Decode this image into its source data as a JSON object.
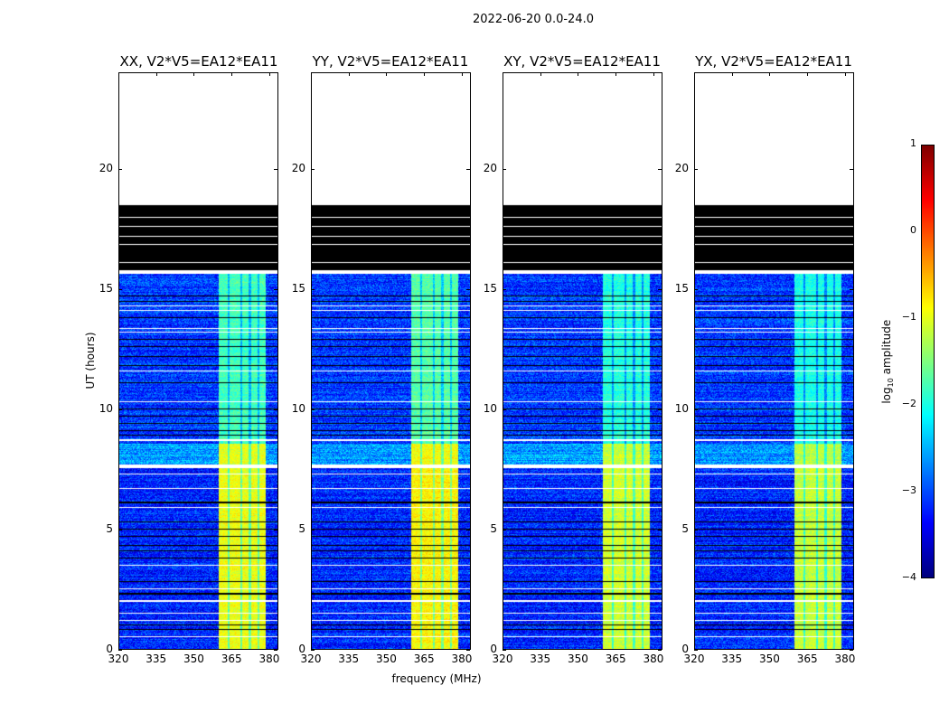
{
  "chart_data": {
    "type": "heatmap",
    "title": "2022-06-20 0.0-24.0",
    "xlabel": "frequency (MHz)",
    "ylabel": "UT (hours)",
    "xlim": [
      320,
      383.6
    ],
    "ylim": [
      0,
      24
    ],
    "xticks": [
      "320",
      "335",
      "350",
      "365",
      "380"
    ],
    "xtick_values": [
      320,
      335,
      350,
      365,
      380
    ],
    "yticks": [
      "0",
      "5",
      "10",
      "15",
      "20"
    ],
    "ytick_values": [
      0,
      5,
      10,
      15,
      20
    ],
    "colorbar": {
      "label_main": "log",
      "label_sub": "10",
      "label_rest": " amplitude",
      "range": [
        -4,
        1
      ],
      "ticks": [
        "1",
        "0",
        "−1",
        "−2",
        "−3",
        "−4"
      ],
      "tick_values": [
        1,
        0,
        -1,
        -2,
        -3,
        -4
      ],
      "colormap": "jet"
    },
    "panels": [
      {
        "title": "XX, V2*V5=EA12*EA11",
        "band_offset": 0.0
      },
      {
        "title": "YY, V2*V5=EA12*EA11",
        "band_offset": 0.1
      },
      {
        "title": "XY, V2*V5=EA12*EA11",
        "band_offset": -0.15
      },
      {
        "title": "YX, V2*V5=EA12*EA11",
        "band_offset": -0.2
      }
    ],
    "rfi_band_mhz": [
      360,
      379
    ],
    "band_dark_channels_mhz": [
      364,
      369,
      372.5,
      376
    ],
    "segments": [
      {
        "t": [
          0,
          7.55
        ],
        "background": -3.2,
        "band": -0.95
      },
      {
        "t": [
          7.7,
          8.55
        ],
        "background": -2.6,
        "band": -1.0
      },
      {
        "t": [
          8.55,
          15.65
        ],
        "background": -3.1,
        "band": -1.8
      },
      {
        "t": [
          15.8,
          18.5
        ],
        "flagged": true
      }
    ],
    "flagged_white_lines_hours": [
      18.0,
      17.6,
      17.2,
      16.85,
      16.1
    ],
    "gap_lines_hours": [
      0.5,
      1.2,
      1.5,
      2.0,
      2.5,
      3.5,
      5.9,
      6.7,
      7.3,
      8.7,
      10.3,
      11.6,
      13.2,
      13.35,
      14.1,
      14.3
    ],
    "flagged_lines_hours": [
      0.8,
      1.0,
      2.3,
      2.8,
      3.8,
      4.1,
      4.3,
      4.7,
      5.0,
      5.3,
      6.1,
      8.9,
      9.1,
      9.4,
      9.7,
      10.0,
      11.1,
      11.8,
      12.2,
      12.6,
      12.9,
      13.8,
      14.5,
      14.7
    ]
  }
}
